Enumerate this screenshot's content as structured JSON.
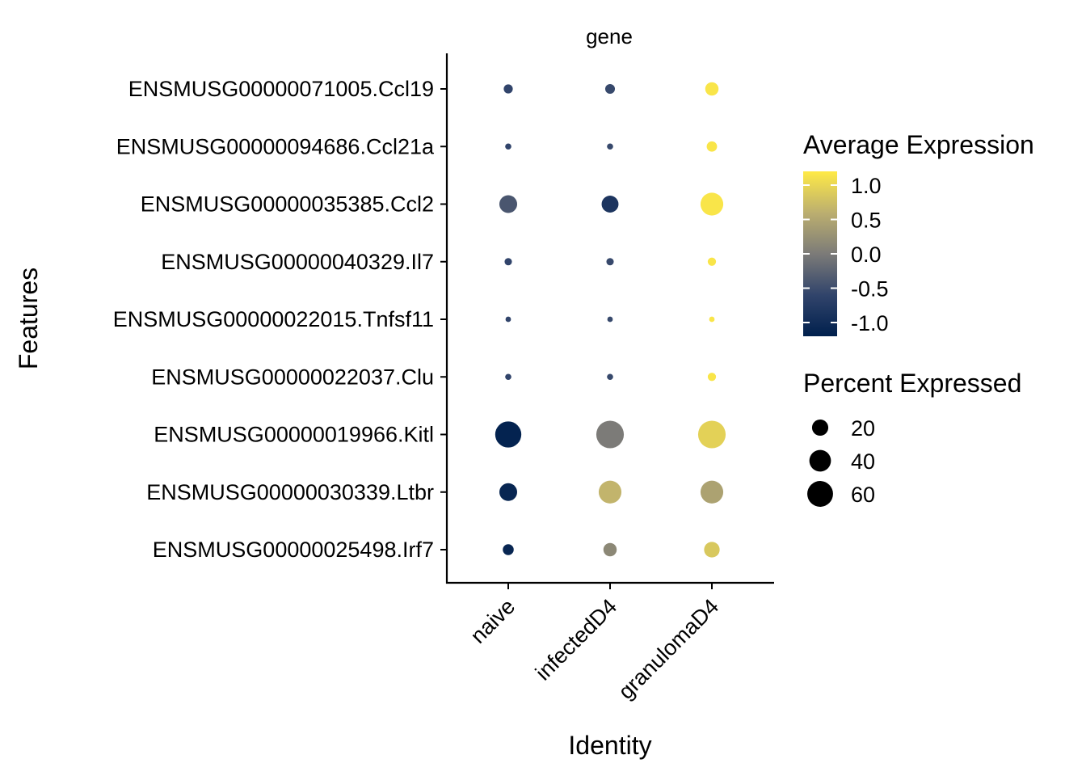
{
  "chart_data": {
    "type": "dot",
    "facet_label": "gene",
    "xlabel": "Identity",
    "ylabel": "Features",
    "categories": [
      "naive",
      "infectedD4",
      "granulomaD4"
    ],
    "features": [
      "ENSMUSG00000071005.Ccl19",
      "ENSMUSG00000094686.Ccl21a",
      "ENSMUSG00000035385.Ccl2",
      "ENSMUSG00000040329.Il7",
      "ENSMUSG00000022015.Tnfsf11",
      "ENSMUSG00000022037.Clu",
      "ENSMUSG00000019966.Kitl",
      "ENSMUSG00000030339.Ltbr",
      "ENSMUSG00000025498.Irf7"
    ],
    "avg_expression": [
      [
        -0.6,
        -0.55,
        1.15
      ],
      [
        -0.6,
        -0.55,
        1.15
      ],
      [
        -0.4,
        -0.85,
        1.15
      ],
      [
        -0.6,
        -0.55,
        1.15
      ],
      [
        -0.6,
        -0.55,
        1.15
      ],
      [
        -0.6,
        -0.55,
        1.15
      ],
      [
        -1.15,
        0.0,
        0.95
      ],
      [
        -1.1,
        0.65,
        0.45
      ],
      [
        -1.1,
        0.15,
        0.85
      ]
    ],
    "pct_expressed": [
      [
        4,
        5,
        12
      ],
      [
        1,
        1,
        6
      ],
      [
        25,
        22,
        45
      ],
      [
        2,
        2,
        3
      ],
      [
        0.6,
        0.6,
        0.6
      ],
      [
        1,
        1,
        3
      ],
      [
        62,
        70,
        70
      ],
      [
        25,
        45,
        45
      ],
      [
        7,
        12,
        18
      ]
    ],
    "color_legend": {
      "title": "Average Expression",
      "ticks": [
        1.0,
        0.5,
        0.0,
        -0.5,
        -1.0
      ],
      "tick_labels": [
        "1.0",
        "0.5",
        "0.0",
        "-0.5",
        "-1.0"
      ],
      "range": [
        -1.2,
        1.2
      ],
      "low_color": "#00204d",
      "mid_color": "#7c7b78",
      "high_color": "#ffea46"
    },
    "size_legend": {
      "title": "Percent Expressed",
      "values": [
        20,
        40,
        60
      ],
      "labels": [
        "20",
        "40",
        "60"
      ]
    }
  }
}
